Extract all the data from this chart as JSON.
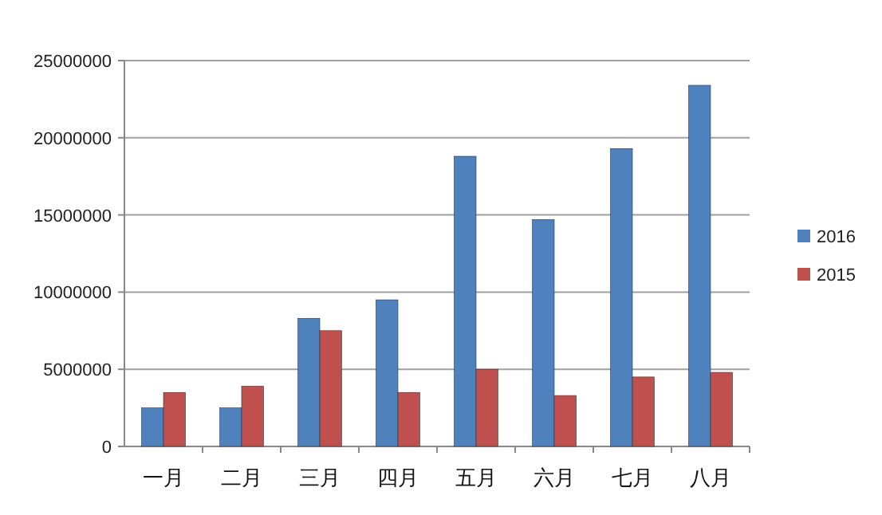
{
  "chart_data": {
    "type": "bar",
    "categories": [
      "一月",
      "二月",
      "三月",
      "四月",
      "五月",
      "六月",
      "七月",
      "八月"
    ],
    "series": [
      {
        "name": "2016",
        "color": "#4f81bd",
        "values": [
          2500000,
          2500000,
          8300000,
          9500000,
          18800000,
          14700000,
          19300000,
          23400000
        ]
      },
      {
        "name": "2015",
        "color": "#c0504d",
        "values": [
          3500000,
          3900000,
          7500000,
          3500000,
          5000000,
          3300000,
          4500000,
          4800000
        ]
      }
    ],
    "ylim": [
      0,
      25000000
    ],
    "yticks": [
      0,
      5000000,
      10000000,
      15000000,
      20000000,
      25000000
    ],
    "grid": "y",
    "legend": "right"
  }
}
